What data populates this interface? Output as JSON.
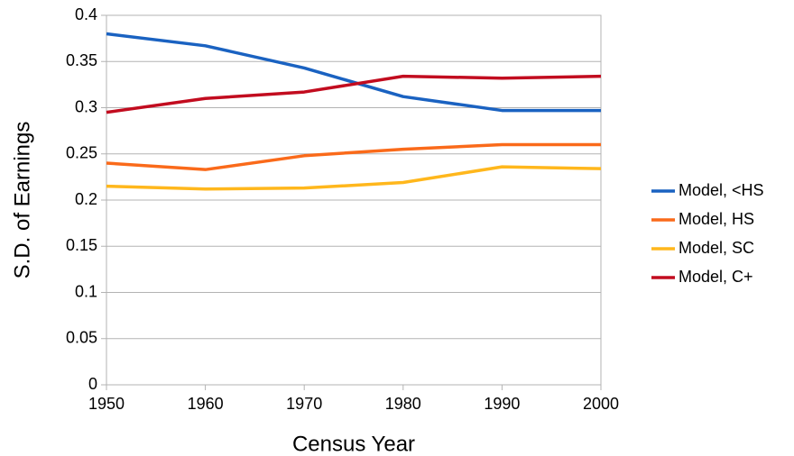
{
  "chart_data": {
    "type": "line",
    "x_label": "Census Year",
    "y_label": "S.D. of Earnings",
    "x": [
      1950,
      1960,
      1970,
      1980,
      1990,
      2000
    ],
    "series": [
      {
        "name": "Model, <HS",
        "color": "#1a62c1",
        "values": [
          0.38,
          0.367,
          0.343,
          0.312,
          0.297,
          0.297
        ]
      },
      {
        "name": "Model, HS",
        "color": "#fa6a1a",
        "values": [
          0.24,
          0.233,
          0.248,
          0.255,
          0.26,
          0.26
        ]
      },
      {
        "name": "Model, SC",
        "color": "#ffb71c",
        "values": [
          0.215,
          0.212,
          0.213,
          0.219,
          0.236,
          0.234
        ]
      },
      {
        "name": "Model, C+",
        "color": "#c20c1f",
        "values": [
          0.295,
          0.31,
          0.317,
          0.334,
          0.332,
          0.334
        ]
      }
    ],
    "xlim": [
      1950,
      2000
    ],
    "xticks": [
      1950,
      1960,
      1970,
      1980,
      1990,
      2000
    ],
    "ylim": [
      0,
      0.4
    ],
    "yticks": [
      0,
      0.05,
      0.1,
      0.15,
      0.2,
      0.25,
      0.3,
      0.35,
      0.4
    ],
    "grid": true,
    "legend": "right"
  }
}
